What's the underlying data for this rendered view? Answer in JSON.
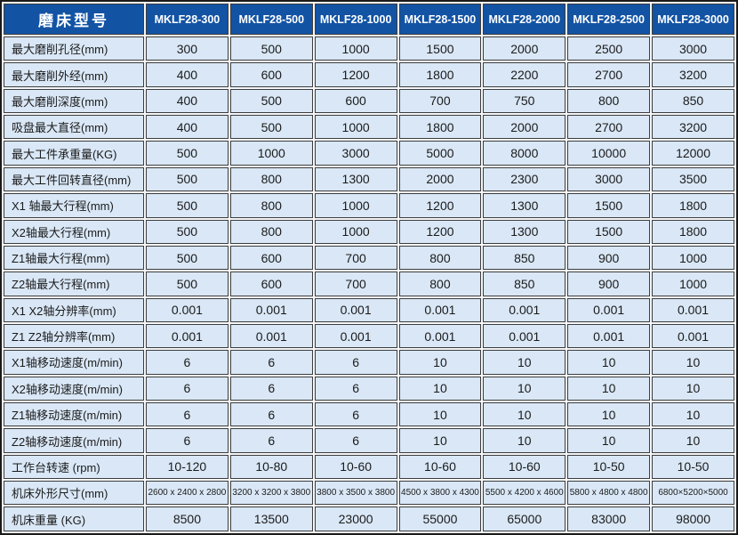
{
  "table": {
    "header": {
      "title": "磨床型号",
      "models": [
        "MKLF28-300",
        "MKLF28-500",
        "MKLF28-1000",
        "MKLF28-1500",
        "MKLF28-2000",
        "MKLF28-2500",
        "MKLF28-3000"
      ]
    },
    "rows": [
      {
        "label": "最大磨削孔径(mm)",
        "values": [
          "300",
          "500",
          "1000",
          "1500",
          "2000",
          "2500",
          "3000"
        ]
      },
      {
        "label": "最大磨削外经(mm)",
        "values": [
          "400",
          "600",
          "1200",
          "1800",
          "2200",
          "2700",
          "3200"
        ]
      },
      {
        "label": "最大磨削深度(mm)",
        "values": [
          "400",
          "500",
          "600",
          "700",
          "750",
          "800",
          "850"
        ]
      },
      {
        "label": "吸盘最大直径(mm)",
        "values": [
          "400",
          "500",
          "1000",
          "1800",
          "2000",
          "2700",
          "3200"
        ]
      },
      {
        "label": "最大工件承重量(KG)",
        "values": [
          "500",
          "1000",
          "3000",
          "5000",
          "8000",
          "10000",
          "12000"
        ]
      },
      {
        "label": "最大工件回转直径(mm)",
        "values": [
          "500",
          "800",
          "1300",
          "2000",
          "2300",
          "3000",
          "3500"
        ]
      },
      {
        "label": "X1 轴最大行程(mm)",
        "values": [
          "500",
          "800",
          "1000",
          "1200",
          "1300",
          "1500",
          "1800"
        ]
      },
      {
        "label": "X2轴最大行程(mm)",
        "values": [
          "500",
          "800",
          "1000",
          "1200",
          "1300",
          "1500",
          "1800"
        ]
      },
      {
        "label": "Z1轴最大行程(mm)",
        "values": [
          "500",
          "600",
          "700",
          "800",
          "850",
          "900",
          "1000"
        ]
      },
      {
        "label": "Z2轴最大行程(mm)",
        "values": [
          "500",
          "600",
          "700",
          "800",
          "850",
          "900",
          "1000"
        ]
      },
      {
        "label": "X1 X2轴分辨率(mm)",
        "values": [
          "0.001",
          "0.001",
          "0.001",
          "0.001",
          "0.001",
          "0.001",
          "0.001"
        ]
      },
      {
        "label": "Z1 Z2轴分辨率(mm)",
        "values": [
          "0.001",
          "0.001",
          "0.001",
          "0.001",
          "0.001",
          "0.001",
          "0.001"
        ]
      },
      {
        "label": "X1轴移动速度(m/min)",
        "values": [
          "6",
          "6",
          "6",
          "10",
          "10",
          "10",
          "10"
        ]
      },
      {
        "label": "X2轴移动速度(m/min)",
        "values": [
          "6",
          "6",
          "6",
          "10",
          "10",
          "10",
          "10"
        ]
      },
      {
        "label": "Z1轴移动速度(m/min)",
        "values": [
          "6",
          "6",
          "6",
          "10",
          "10",
          "10",
          "10"
        ]
      },
      {
        "label": "Z2轴移动速度(m/min)",
        "values": [
          "6",
          "6",
          "6",
          "10",
          "10",
          "10",
          "10"
        ]
      },
      {
        "label": "工作台转速 (rpm)",
        "values": [
          "10-120",
          "10-80",
          "10-60",
          "10-60",
          "10-60",
          "10-50",
          "10-50"
        ]
      },
      {
        "label": "机床外形尺寸(mm)",
        "values": [
          "2600 x 2400 x 2800",
          "3200 x 3200 x 3800",
          "3800 x 3500 x 3800",
          "4500 x 3800 x 4300",
          "5500 x 4200 x 4600",
          "5800 x 4800 x 4800",
          "6800×5200×5000"
        ],
        "small": true
      },
      {
        "label": "机床重量 (KG)",
        "values": [
          "8500",
          "13500",
          "23000",
          "55000",
          "65000",
          "83000",
          "98000"
        ]
      }
    ]
  },
  "colors": {
    "header_bg": "#1253a4",
    "header_text": "#ffffff",
    "cell_bg": "#d9e7f6",
    "border": "#3d3d3d",
    "outer_border": "#1a1a1a",
    "text": "#1b1b1b"
  }
}
